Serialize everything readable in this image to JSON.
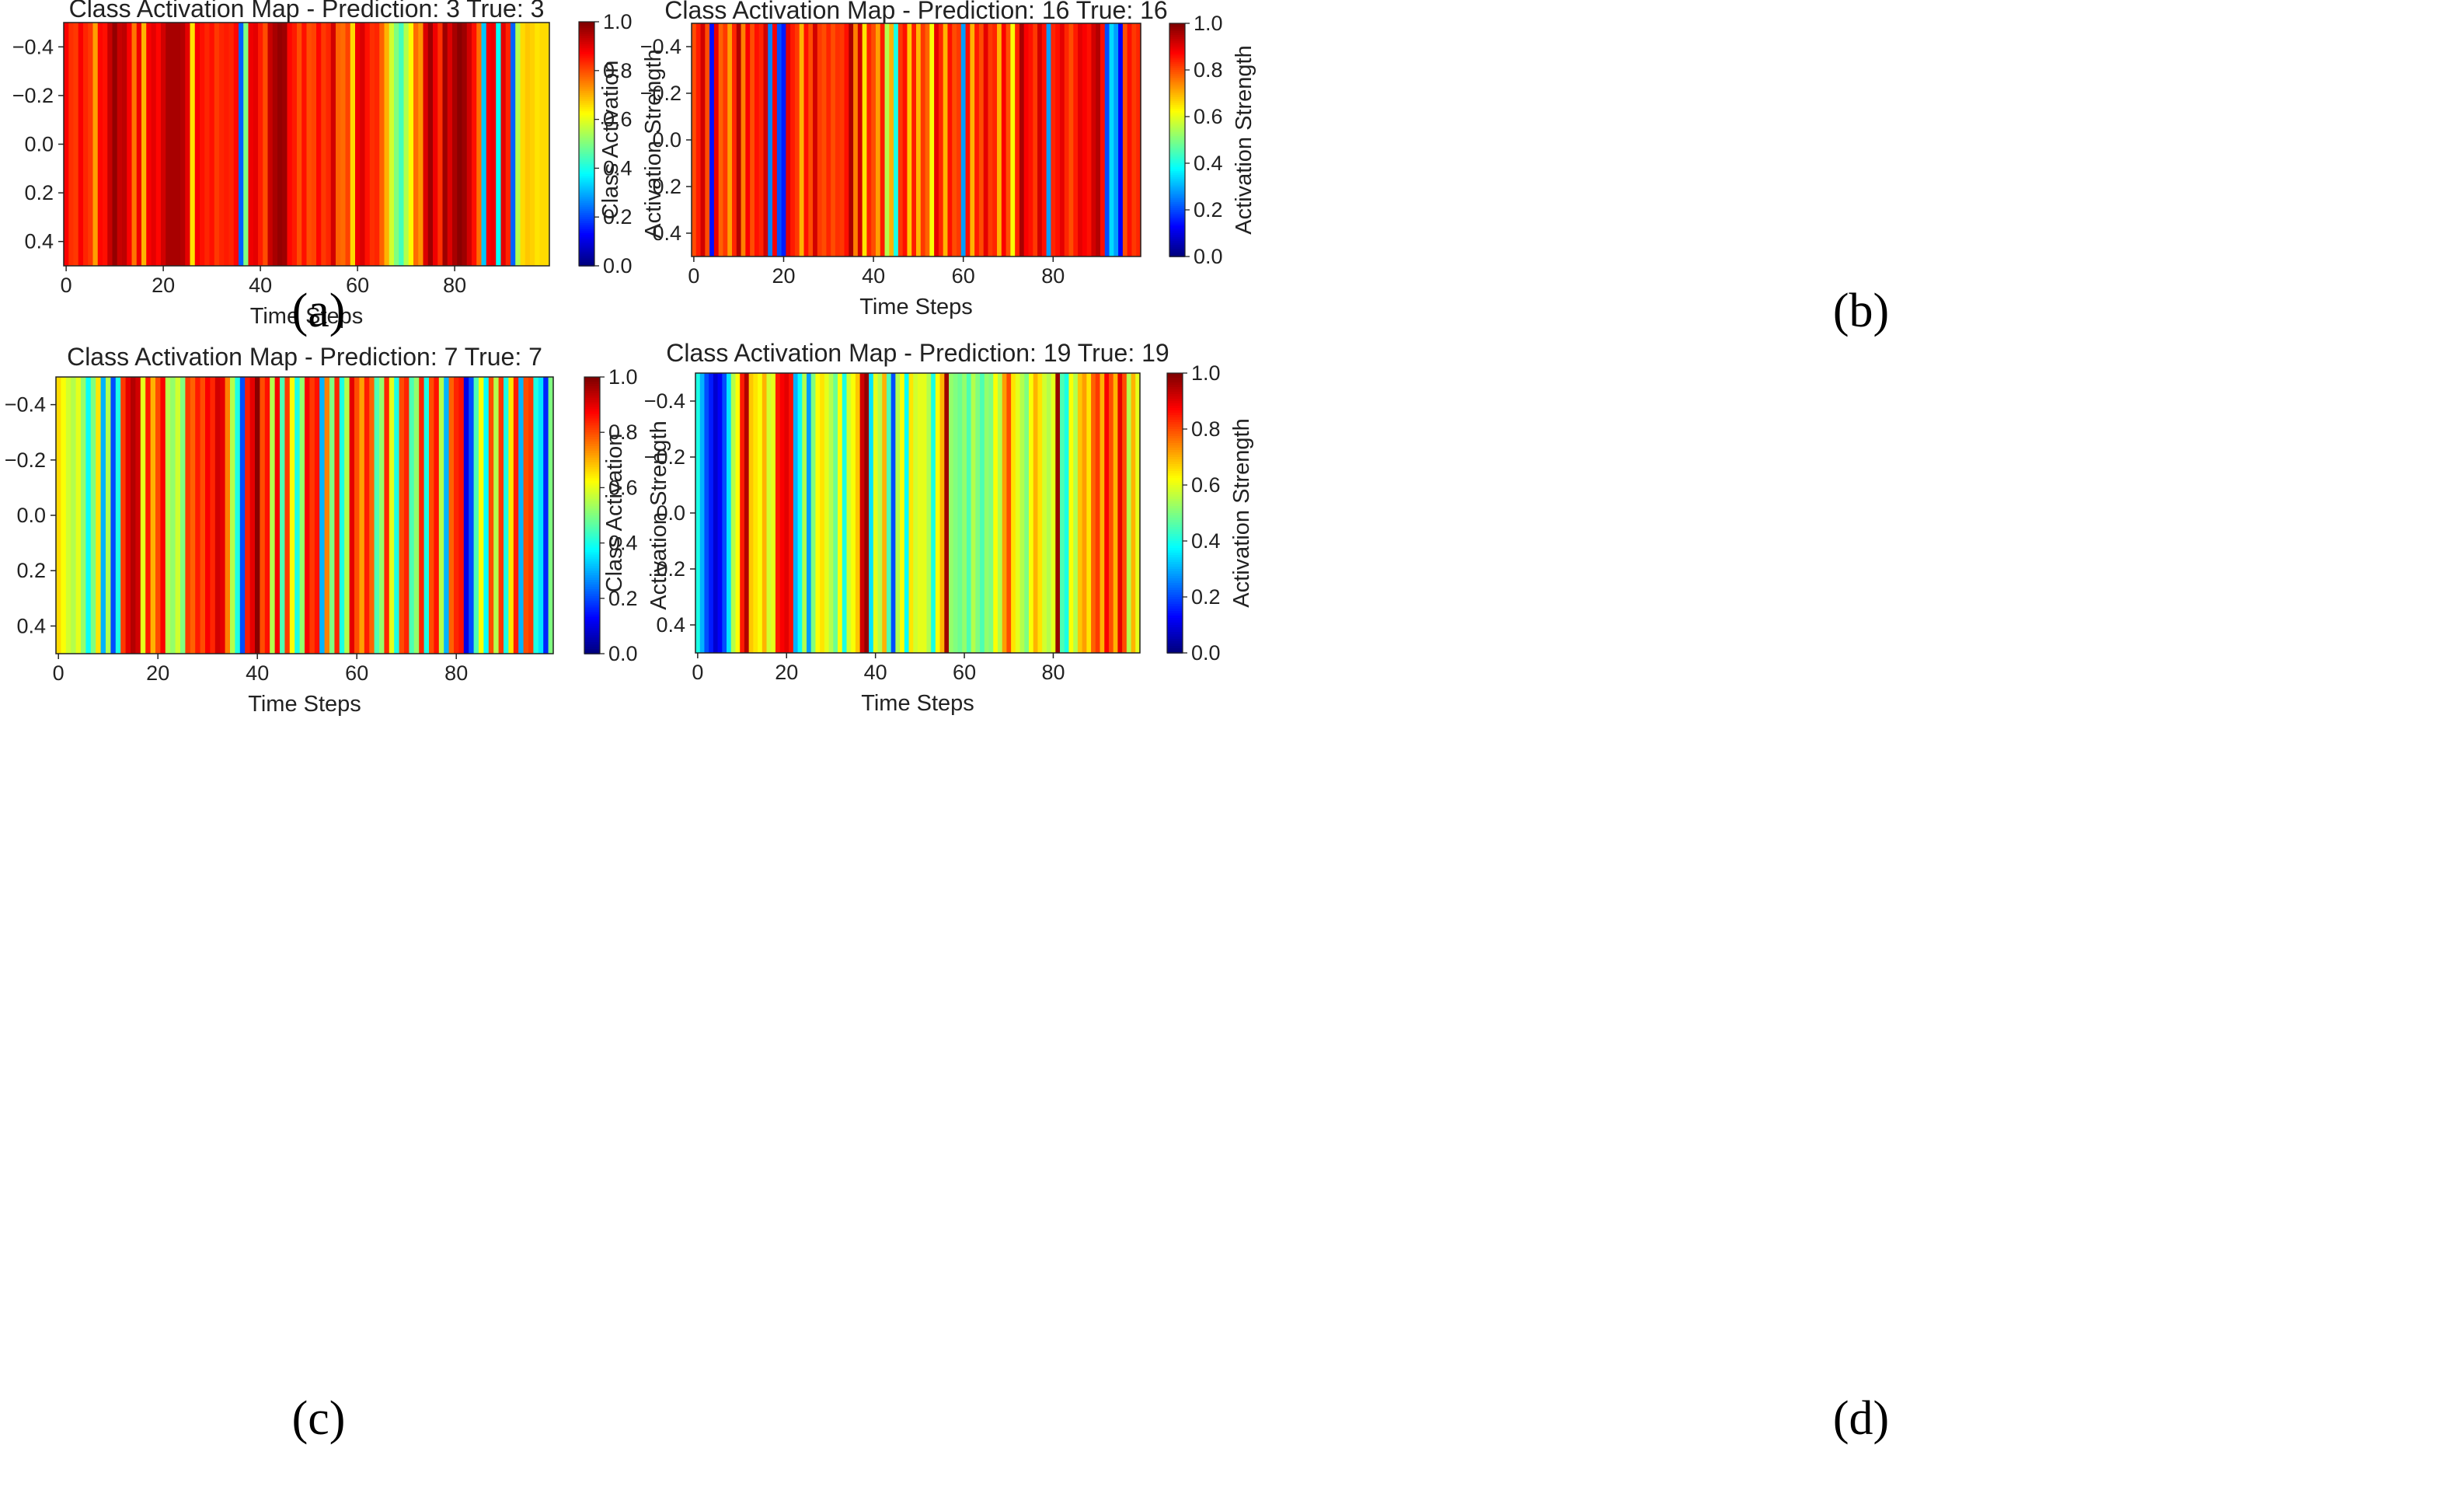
{
  "chart_data": [
    {
      "type": "heatmap",
      "panel": "(a)",
      "title": "Class Activation Map - Prediction: 3 True: 3",
      "xlabel": "Time Steps",
      "ylabel": "Class Activation",
      "colorbar_label": "Activation Strength",
      "xlim": [
        -0.5,
        99.5
      ],
      "ylim": [
        0.5,
        -0.5
      ],
      "xticks": [
        0,
        20,
        40,
        60,
        80
      ],
      "xtick_labels": [
        "0",
        "20",
        "40",
        "60",
        "80"
      ],
      "yticks": [
        -0.4,
        -0.2,
        0.0,
        0.2,
        0.4
      ],
      "ytick_labels": [
        "−0.4",
        "−0.2",
        "0.0",
        "0.2",
        "0.4"
      ],
      "cbar_ticks": [
        0.0,
        0.2,
        0.4,
        0.6,
        0.8,
        1.0
      ],
      "cbar_tick_labels": [
        "0.0",
        "0.2",
        "0.4",
        "0.6",
        "0.8",
        "1.0"
      ],
      "colormap": "jet",
      "values": [
        0.88,
        0.83,
        0.82,
        0.88,
        0.84,
        0.82,
        0.72,
        0.87,
        0.86,
        0.93,
        0.98,
        0.93,
        0.94,
        0.88,
        0.76,
        0.89,
        0.7,
        0.88,
        0.9,
        0.87,
        0.92,
        0.96,
        0.96,
        0.96,
        0.95,
        0.9,
        0.65,
        0.88,
        0.86,
        0.84,
        0.86,
        0.82,
        0.84,
        0.85,
        0.84,
        0.87,
        0.22,
        0.5,
        0.89,
        0.9,
        0.85,
        0.8,
        0.93,
        0.96,
        0.98,
        0.97,
        0.87,
        0.85,
        0.8,
        0.86,
        0.8,
        0.81,
        0.87,
        0.82,
        0.84,
        0.92,
        0.78,
        0.77,
        0.81,
        0.66,
        0.89,
        0.91,
        0.86,
        0.83,
        0.84,
        0.78,
        0.7,
        0.58,
        0.5,
        0.44,
        0.55,
        0.63,
        0.77,
        0.73,
        0.91,
        0.97,
        0.89,
        0.83,
        0.97,
        0.91,
        0.96,
        0.99,
        0.97,
        0.92,
        0.86,
        0.77,
        0.32,
        0.88,
        0.89,
        0.38,
        0.9,
        0.84,
        0.22,
        0.55,
        0.66,
        0.68,
        0.67,
        0.65,
        0.66,
        0.66
      ]
    },
    {
      "type": "heatmap",
      "panel": "(b)",
      "title": "Class Activation Map - Prediction: 16 True: 16",
      "xlabel": "Time Steps",
      "ylabel": "Class Activation",
      "colorbar_label": "Activation Strength",
      "xlim": [
        -0.5,
        99.5
      ],
      "ylim": [
        0.5,
        -0.5
      ],
      "xticks": [
        0,
        20,
        40,
        60,
        80
      ],
      "xtick_labels": [
        "0",
        "20",
        "40",
        "60",
        "80"
      ],
      "yticks": [
        -0.4,
        -0.2,
        0.0,
        0.2,
        0.4
      ],
      "ytick_labels": [
        "−0.4",
        "−0.2",
        "0.0",
        "0.2",
        "0.4"
      ],
      "cbar_ticks": [
        0.0,
        0.2,
        0.4,
        0.6,
        0.8,
        1.0
      ],
      "cbar_tick_labels": [
        "0.0",
        "0.2",
        "0.4",
        "0.6",
        "0.8",
        "1.0"
      ],
      "colormap": "jet",
      "values": [
        0.8,
        0.85,
        0.92,
        0.8,
        0.14,
        0.9,
        0.78,
        0.82,
        0.72,
        0.84,
        0.95,
        0.75,
        0.88,
        0.8,
        0.86,
        0.84,
        0.92,
        0.25,
        0.88,
        0.2,
        0.15,
        0.9,
        0.85,
        0.82,
        0.7,
        0.86,
        0.8,
        0.92,
        0.82,
        0.8,
        0.84,
        0.8,
        0.83,
        0.82,
        0.86,
        0.96,
        0.75,
        0.92,
        0.65,
        0.84,
        0.8,
        0.72,
        0.85,
        0.55,
        0.7,
        0.4,
        0.82,
        0.86,
        0.68,
        0.85,
        0.7,
        0.82,
        0.78,
        0.62,
        0.9,
        0.84,
        0.7,
        0.86,
        0.8,
        0.82,
        0.28,
        0.86,
        0.7,
        0.85,
        0.8,
        0.9,
        0.82,
        0.84,
        0.7,
        0.88,
        0.8,
        0.62,
        0.84,
        0.96,
        0.88,
        0.86,
        0.82,
        0.92,
        0.86,
        0.28,
        0.84,
        0.86,
        0.9,
        0.84,
        0.8,
        0.85,
        0.9,
        0.88,
        0.86,
        0.92,
        0.95,
        0.86,
        0.2,
        0.34,
        0.28,
        0.12,
        0.8,
        0.86,
        0.82,
        0.84
      ]
    },
    {
      "type": "heatmap",
      "panel": "(c)",
      "title": "Class Activation Map - Prediction: 7 True: 7",
      "xlabel": "Time Steps",
      "ylabel": "Class Activation",
      "colorbar_label": "Activation Strength",
      "xlim": [
        -0.5,
        99.5
      ],
      "ylim": [
        0.5,
        -0.5
      ],
      "xticks": [
        0,
        20,
        40,
        60,
        80
      ],
      "xtick_labels": [
        "0",
        "20",
        "40",
        "60",
        "80"
      ],
      "yticks": [
        -0.4,
        -0.2,
        0.0,
        0.2,
        0.4
      ],
      "ytick_labels": [
        "−0.4",
        "−0.2",
        "0.0",
        "0.2",
        "0.4"
      ],
      "cbar_ticks": [
        0.0,
        0.2,
        0.4,
        0.6,
        0.8,
        1.0
      ],
      "cbar_tick_labels": [
        "0.0",
        "0.2",
        "0.4",
        "0.6",
        "0.8",
        "1.0"
      ],
      "colormap": "jet",
      "values": [
        0.66,
        0.62,
        0.58,
        0.55,
        0.6,
        0.52,
        0.38,
        0.5,
        0.65,
        0.3,
        0.55,
        0.2,
        0.4,
        0.82,
        0.9,
        0.95,
        0.92,
        0.6,
        0.85,
        0.7,
        0.8,
        0.88,
        0.55,
        0.52,
        0.58,
        0.5,
        0.82,
        0.78,
        0.85,
        0.8,
        0.88,
        0.84,
        0.92,
        0.9,
        0.75,
        0.55,
        0.4,
        0.2,
        0.85,
        0.9,
        0.99,
        0.8,
        0.86,
        0.55,
        0.88,
        0.45,
        0.82,
        0.62,
        0.4,
        0.52,
        0.88,
        0.82,
        0.86,
        0.3,
        0.75,
        0.5,
        0.84,
        0.4,
        0.55,
        0.9,
        0.8,
        0.72,
        0.85,
        0.78,
        0.45,
        0.52,
        0.84,
        0.6,
        0.4,
        0.8,
        0.84,
        0.45,
        0.52,
        0.84,
        0.4,
        0.8,
        0.86,
        0.55,
        0.3,
        0.78,
        0.84,
        0.86,
        0.1,
        0.2,
        0.45,
        0.62,
        0.38,
        0.8,
        0.55,
        0.82,
        0.4,
        0.65,
        0.85,
        0.3,
        0.8,
        0.82,
        0.4,
        0.35,
        0.16,
        0.5
      ]
    },
    {
      "type": "heatmap",
      "panel": "(d)",
      "title": "Class Activation Map - Prediction: 19 True: 19",
      "xlabel": "Time Steps",
      "ylabel": "Class Activation",
      "colorbar_label": "Activation Strength",
      "xlim": [
        -0.5,
        99.5
      ],
      "ylim": [
        0.5,
        -0.5
      ],
      "xticks": [
        0,
        20,
        40,
        60,
        80
      ],
      "xtick_labels": [
        "0",
        "20",
        "40",
        "60",
        "80"
      ],
      "yticks": [
        -0.4,
        -0.2,
        0.0,
        0.2,
        0.4
      ],
      "ytick_labels": [
        "−0.4",
        "−0.2",
        "0.0",
        "0.2",
        "0.4"
      ],
      "cbar_ticks": [
        0.0,
        0.2,
        0.4,
        0.6,
        0.8,
        1.0
      ],
      "cbar_tick_labels": [
        "0.0",
        "0.2",
        "0.4",
        "0.6",
        "0.8",
        "1.0"
      ],
      "colormap": "jet",
      "values": [
        0.4,
        0.3,
        0.2,
        0.15,
        0.08,
        0.12,
        0.2,
        0.35,
        0.55,
        0.62,
        0.85,
        0.95,
        0.68,
        0.65,
        0.62,
        0.7,
        0.58,
        0.6,
        0.85,
        0.88,
        0.9,
        0.86,
        0.3,
        0.38,
        0.55,
        0.28,
        0.5,
        0.62,
        0.65,
        0.6,
        0.55,
        0.48,
        0.62,
        0.4,
        0.58,
        0.62,
        0.68,
        0.92,
        0.98,
        0.35,
        0.6,
        0.55,
        0.7,
        0.45,
        0.2,
        0.55,
        0.62,
        0.38,
        0.65,
        0.58,
        0.6,
        0.6,
        0.55,
        0.4,
        0.62,
        0.7,
        0.97,
        0.52,
        0.5,
        0.48,
        0.52,
        0.45,
        0.55,
        0.5,
        0.45,
        0.52,
        0.5,
        0.62,
        0.55,
        0.72,
        0.8,
        0.65,
        0.6,
        0.55,
        0.5,
        0.62,
        0.7,
        0.65,
        0.58,
        0.55,
        0.6,
        0.98,
        0.45,
        0.4,
        0.62,
        0.55,
        0.68,
        0.72,
        0.65,
        0.78,
        0.82,
        0.7,
        0.88,
        0.8,
        0.7,
        0.9,
        0.8,
        0.55,
        0.7,
        0.6
      ]
    }
  ],
  "captions": [
    "(a)",
    "(b)",
    "(c)",
    "(d)"
  ]
}
